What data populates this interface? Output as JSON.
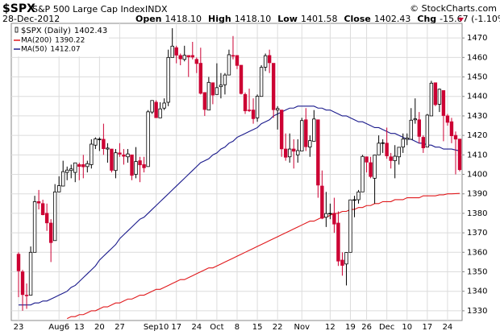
{
  "chart_data": {
    "type": "candlestick",
    "symbol": "$SPX",
    "name": "S&P 500 Large Cap Index",
    "exchange": "INDX",
    "date": "28-Dec-2012",
    "quote": [
      {
        "label": "Open",
        "value": "1418.10"
      },
      {
        "label": "High",
        "value": "1418.10"
      },
      {
        "label": "Low",
        "value": "1401.58"
      },
      {
        "label": "Close",
        "value": "1402.43"
      },
      {
        "label": "Chg",
        "value": "-15.67 (-1.10%)"
      }
    ],
    "copyright": "© StockCharts.com",
    "price_legend": {
      "name": "$SPX (Daily)",
      "value": "1402.43"
    },
    "up_color": "#000000",
    "down_color": "#cc0033",
    "ylim": [
      1325,
      1477.5
    ],
    "yticks": [
      1330,
      1340,
      1350,
      1360,
      1370,
      1380,
      1390,
      1400,
      1410,
      1420,
      1430,
      1440,
      1450,
      1460,
      1470
    ],
    "grid": true,
    "categories": [
      "23",
      null,
      null,
      null,
      null,
      null,
      null,
      null,
      null,
      null,
      "Aug6",
      null,
      null,
      null,
      null,
      "13",
      null,
      null,
      null,
      null,
      "20",
      null,
      null,
      null,
      null,
      "27",
      null,
      null,
      null,
      null,
      null,
      null,
      null,
      null,
      "Sep10",
      null,
      null,
      null,
      null,
      "17",
      null,
      null,
      null,
      null,
      "24",
      null,
      null,
      null,
      null,
      "Oct",
      null,
      null,
      null,
      null,
      "8",
      null,
      null,
      null,
      null,
      "15",
      null,
      null,
      null,
      null,
      "22",
      null,
      null,
      null,
      null,
      null,
      "Nov",
      null,
      null,
      null,
      null,
      null,
      null,
      "12",
      null,
      null,
      null,
      null,
      "19",
      null,
      null,
      null,
      "26",
      null,
      null,
      null,
      null,
      "Dec",
      null,
      null,
      null,
      null,
      "10",
      null,
      null,
      null,
      null,
      "17",
      null,
      null,
      null,
      null,
      "24",
      null,
      null,
      null
    ],
    "open": [
      1359,
      1350,
      1338,
      1338,
      1360,
      1386,
      1385,
      1380,
      1375,
      1366,
      1391,
      1394,
      1401,
      1402,
      1401,
      1405,
      1405,
      1404,
      1405,
      1415,
      1418,
      1418,
      1413,
      1413,
      1402,
      1411,
      1410,
      1409,
      1410,
      1400,
      1407,
      1405,
      1404,
      1432,
      1437,
      1429,
      1434,
      1437,
      1460,
      1465,
      1461,
      1459,
      1461,
      1461,
      1459,
      1457,
      1442,
      1433,
      1447,
      1441,
      1445,
      1446,
      1451,
      1461,
      1461,
      1456,
      1441,
      1433,
      1433,
      1429,
      1440,
      1455,
      1461,
      1457,
      1433,
      1433,
      1413,
      1409,
      1413,
      1410,
      1412,
      1428,
      1414,
      1417,
      1428,
      1394,
      1378,
      1380,
      1380,
      1375,
      1356,
      1354,
      1360,
      1387,
      1387,
      1391,
      1409,
      1406,
      1398,
      1410,
      1416,
      1416,
      1409,
      1407,
      1409,
      1414,
      1418,
      1418,
      1428,
      1428,
      1419,
      1414,
      1430,
      1447,
      1436,
      1443,
      1430,
      1427,
      1420,
      1418.1
    ],
    "high": [
      1360,
      1351,
      1344,
      1363,
      1389,
      1392,
      1387,
      1385,
      1377,
      1395,
      1399,
      1407,
      1404,
      1405,
      1406,
      1406,
      1410,
      1407,
      1418,
      1419,
      1419,
      1426,
      1416,
      1413,
      1413,
      1416,
      1413,
      1413,
      1410,
      1414,
      1409,
      1409,
      1433,
      1438,
      1438,
      1437,
      1439,
      1464,
      1475,
      1466,
      1462,
      1466,
      1461,
      1468,
      1460,
      1465,
      1442,
      1450,
      1447,
      1457,
      1452,
      1452,
      1464,
      1471,
      1461,
      1456,
      1442,
      1444,
      1439,
      1441,
      1456,
      1462,
      1464,
      1457,
      1435,
      1433,
      1421,
      1421,
      1418,
      1418,
      1429,
      1434,
      1420,
      1433,
      1428,
      1402,
      1391,
      1385,
      1388,
      1381,
      1360,
      1360,
      1387,
      1389,
      1392,
      1410,
      1409,
      1409,
      1410,
      1420,
      1418,
      1424,
      1411,
      1415,
      1414,
      1421,
      1421,
      1434,
      1439,
      1432,
      1420,
      1431,
      1448,
      1447,
      1444,
      1443,
      1431,
      1429,
      1422,
      1418.1
    ],
    "low": [
      1337,
      1330,
      1331,
      1338,
      1360,
      1382,
      1379,
      1371,
      1355,
      1366,
      1391,
      1394,
      1397,
      1398,
      1396,
      1397,
      1398,
      1401,
      1403,
      1413,
      1412,
      1410,
      1406,
      1401,
      1398,
      1409,
      1405,
      1406,
      1397,
      1398,
      1396,
      1401,
      1404,
      1431,
      1429,
      1429,
      1433,
      1435,
      1460,
      1457,
      1456,
      1458,
      1450,
      1459,
      1452,
      1441,
      1430,
      1433,
      1436,
      1441,
      1439,
      1441,
      1451,
      1459,
      1454,
      1441,
      1431,
      1432,
      1426,
      1427,
      1440,
      1453,
      1452,
      1429,
      1423,
      1409,
      1407,
      1406,
      1403,
      1406,
      1412,
      1412,
      1409,
      1417,
      1388,
      1377,
      1373,
      1377,
      1370,
      1353,
      1348,
      1343,
      1360,
      1378,
      1385,
      1391,
      1401,
      1398,
      1385,
      1410,
      1411,
      1408,
      1403,
      1398,
      1405,
      1411,
      1415,
      1418,
      1426,
      1416,
      1411,
      1414,
      1430,
      1435,
      1432,
      1417,
      1425,
      1416,
      1400,
      1401.58
    ],
    "close": [
      1350.5,
      1338.3,
      1337.9,
      1360,
      1386,
      1385.3,
      1379.3,
      1375.1,
      1365,
      1391,
      1394.2,
      1401.4,
      1402.2,
      1402.8,
      1405.9,
      1404.1,
      1403.9,
      1405.5,
      1415.5,
      1418.2,
      1418.1,
      1413.2,
      1413.5,
      1402.1,
      1411.1,
      1410.4,
      1409.3,
      1410.5,
      1399.5,
      1406.6,
      1404.9,
      1403.4,
      1432.1,
      1437.9,
      1429.1,
      1433.6,
      1436.6,
      1460,
      1465.8,
      1461.2,
      1459.3,
      1461.1,
      1460.3,
      1460.2,
      1456.9,
      1441.6,
      1433.3,
      1447.2,
      1440.7,
      1444.5,
      1445.8,
      1451,
      1461.4,
      1460.9,
      1455.9,
      1441.5,
      1432.6,
      1432.8,
      1428.6,
      1440.1,
      1454.9,
      1460.9,
      1457.3,
      1433.2,
      1433.8,
      1413.1,
      1408.8,
      1413,
      1411.9,
      1412.2,
      1427.6,
      1414.2,
      1417.3,
      1428.4,
      1394.5,
      1377.5,
      1379.9,
      1380,
      1374.5,
      1355.5,
      1353.3,
      1359.9,
      1386.9,
      1387,
      1391,
      1409.2,
      1406.3,
      1398.9,
      1409.9,
      1416,
      1416.2,
      1409.5,
      1407.1,
      1409.3,
      1413.9,
      1418.1,
      1418.6,
      1427.8,
      1428.5,
      1419.5,
      1413.6,
      1430.4,
      1446.8,
      1435.8,
      1443.7,
      1430.2,
      1426.7,
      1419.8,
      1418.1,
      1402.43
    ],
    "series": [
      {
        "name": "MA(200)",
        "value_label": "1390.22",
        "color": "#e0191c",
        "values": [
          null,
          null,
          null,
          null,
          null,
          null,
          null,
          null,
          null,
          null,
          null,
          null,
          1326,
          1327,
          1327,
          1328,
          1328,
          1329,
          1330,
          1330,
          1331,
          1332,
          1332,
          1333,
          1334,
          1334,
          1335,
          1336,
          1336,
          1337,
          1338,
          1338,
          1339,
          1340,
          1341,
          1341,
          1342,
          1343,
          1344,
          1345,
          1346,
          1346,
          1347,
          1348,
          1349,
          1350,
          1351,
          1352,
          1352,
          1353,
          1354,
          1355,
          1356,
          1357,
          1358,
          1359,
          1360,
          1361,
          1362,
          1363,
          1364,
          1365,
          1366,
          1367,
          1368,
          1369,
          1370,
          1371,
          1372,
          1373,
          1374,
          1375,
          1376,
          1376,
          1377,
          1378,
          1378,
          1379,
          1380,
          1380,
          1381,
          1381,
          1382,
          1382,
          1383,
          1383,
          1384,
          1384,
          1385,
          1385,
          1386,
          1386,
          1386,
          1387,
          1387,
          1387,
          1388,
          1388,
          1388,
          1388,
          1389,
          1389,
          1389,
          1389,
          1389.5,
          1389.5,
          1390,
          1390,
          1390.1,
          1390.22
        ]
      },
      {
        "name": "MA(50)",
        "value_label": "1412.07",
        "color": "#1a1a8c",
        "values": [
          1333,
          1333,
          1333,
          1333,
          1334,
          1334,
          1335,
          1335,
          1336,
          1337,
          1338,
          1339,
          1340,
          1342,
          1343,
          1345,
          1347,
          1349,
          1351,
          1353,
          1356,
          1358,
          1360,
          1362,
          1364,
          1367,
          1369,
          1371,
          1373,
          1375,
          1377,
          1378,
          1380,
          1382,
          1384,
          1386,
          1388,
          1390,
          1392,
          1394,
          1396,
          1398,
          1400,
          1402,
          1404,
          1406,
          1407,
          1408,
          1410,
          1411,
          1413,
          1414,
          1416,
          1417,
          1419,
          1420,
          1421,
          1422,
          1423,
          1424,
          1426,
          1427,
          1428,
          1430,
          1431,
          1432,
          1433,
          1434,
          1434,
          1435,
          1435,
          1435,
          1435,
          1435,
          1434,
          1434,
          1433,
          1433,
          1432,
          1431,
          1430,
          1430,
          1429,
          1428,
          1427,
          1427,
          1426,
          1425,
          1424,
          1424,
          1423,
          1422,
          1421,
          1421,
          1420,
          1419,
          1418,
          1418,
          1417,
          1416,
          1416,
          1415,
          1415,
          1414,
          1414,
          1413,
          1413,
          1413,
          1412.5,
          1412.07
        ]
      }
    ]
  }
}
